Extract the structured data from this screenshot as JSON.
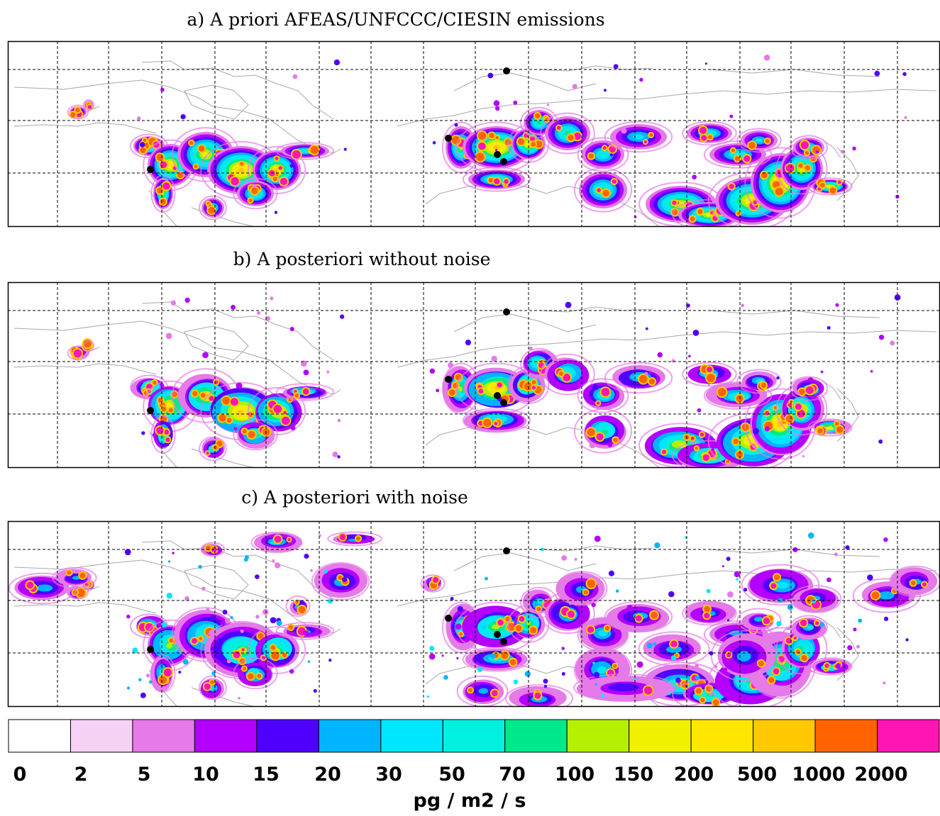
{
  "chart_data": {
    "type": "heatmap",
    "panels": [
      {
        "id": "a",
        "title": "a) A priori AFEAS/UNFCCC/CIESIN emissions",
        "noise_level": 0
      },
      {
        "id": "b",
        "title": "b) A posteriori without noise",
        "noise_level": 1
      },
      {
        "id": "c",
        "title": "c) A posteriori with noise",
        "noise_level": 2
      }
    ],
    "colorbar": {
      "colors": [
        "#ffffff",
        "#f7d2f7",
        "#e57ae8",
        "#b300ff",
        "#5000ff",
        "#00b4ff",
        "#00e6ff",
        "#00f0e0",
        "#00e88c",
        "#b4f000",
        "#f0f000",
        "#ffe600",
        "#ffc800",
        "#ff6400",
        "#ff14b4"
      ],
      "tick_labels": [
        "0",
        "2",
        "5",
        "10",
        "15",
        "20",
        "30",
        "50",
        "70",
        "100",
        "150",
        "200",
        "500",
        "1000",
        "2000"
      ],
      "unit": "pg / m2 / s"
    },
    "grid": true
  }
}
